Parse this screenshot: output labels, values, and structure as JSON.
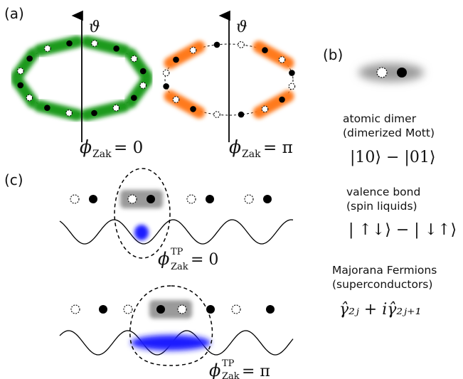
{
  "panels": {
    "a": "(a)",
    "b": "(b)",
    "c": "(c)"
  },
  "axis_label": "ϑ",
  "phase_a_left": {
    "phi": "ϕ",
    "sub": "Zak",
    "rhs": " = 0"
  },
  "phase_a_right": {
    "phi": "ϕ",
    "sub": "Zak",
    "rhs": " = π"
  },
  "phase_c_top": {
    "phi": "ϕ",
    "sup": "TP",
    "sub": "Zak",
    "rhs": " = 0"
  },
  "phase_c_bottom": {
    "phi": "ϕ",
    "sup": "TP",
    "sub": "Zak",
    "rhs": " = π"
  },
  "legend": [
    {
      "line1": "atomic dimer",
      "line2": "(dimerized Mott)",
      "formula": "|10⟩ − |01⟩"
    },
    {
      "line1": "valence bond",
      "line2": "(spin liquids)",
      "formula": "| ↑↓⟩ − | ↓↑⟩"
    },
    {
      "line1": "Majorana Fermions",
      "line2": "(superconductors)",
      "formula": "γ̂₂ⱼ + iγ̂₂ⱼ₊₁"
    }
  ],
  "colors": {
    "trivial": "#1f9a1f",
    "topological": "#ff7a1a",
    "neutral": "#9a9a9a",
    "density": "#1a1aff"
  }
}
